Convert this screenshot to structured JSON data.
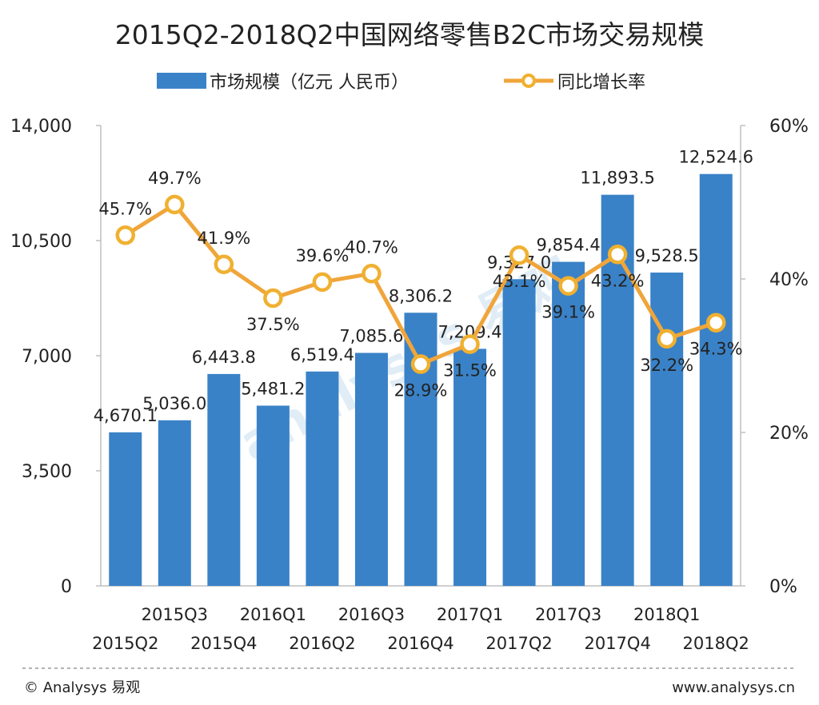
{
  "colors": {
    "bar": "#3a82c7",
    "line": "#f0a53a",
    "marker_fill": "#ffffff",
    "marker_stroke": "#f0b030",
    "axis": "#bfbfbf",
    "footer_rule": "#9a9a9a",
    "watermark": "#c9dff0"
  },
  "footer": {
    "left": "© Analysys 易观",
    "right": "www.analysys.cn"
  },
  "watermark": "analysys 易观",
  "chart_data": {
    "type": "bar",
    "title": "2015Q2-2018Q2中国网络零售B2C市场交易规模",
    "categories": [
      "2015Q2",
      "2015Q3",
      "2015Q4",
      "2016Q1",
      "2016Q2",
      "2016Q3",
      "2016Q4",
      "2017Q1",
      "2017Q2",
      "2017Q3",
      "2017Q4",
      "2018Q1",
      "2018Q2"
    ],
    "series": [
      {
        "name": "市场规模（亿元 人民币）",
        "type": "bar",
        "axis": "left",
        "values": [
          4670.1,
          5036.0,
          6443.8,
          5481.2,
          6519.4,
          7085.6,
          8306.2,
          7209.4,
          9327.0,
          9854.4,
          11893.5,
          9528.5,
          12524.6
        ],
        "labels": [
          "4,670.1",
          "5,036.0",
          "6,443.8",
          "5,481.2",
          "6,519.4",
          "7,085.6",
          "8,306.2",
          "7,209.4",
          "9,327.0",
          "9,854.4",
          "11,893.5",
          "9,528.5",
          "12,524.6"
        ]
      },
      {
        "name": "同比增长率",
        "type": "line",
        "axis": "right",
        "values": [
          45.7,
          49.7,
          41.9,
          37.5,
          39.6,
          40.7,
          28.9,
          31.5,
          43.1,
          39.1,
          43.2,
          32.2,
          34.3
        ],
        "labels": [
          "45.7%",
          "49.7%",
          "41.9%",
          "37.5%",
          "39.6%",
          "40.7%",
          "28.9%",
          "31.5%",
          "43.1%",
          "39.1%",
          "43.2%",
          "32.2%",
          "34.3%"
        ]
      }
    ],
    "y_left": {
      "min": 0,
      "max": 14000,
      "ticks": [
        0,
        3500,
        7000,
        10500,
        14000
      ],
      "tick_labels": [
        "0",
        "3,500",
        "7,000",
        "10,500",
        "14,000"
      ]
    },
    "y_right": {
      "min": 0,
      "max": 60,
      "ticks": [
        0,
        20,
        40,
        60
      ],
      "tick_labels": [
        "0%",
        "20%",
        "40%",
        "60%"
      ]
    },
    "grid": false,
    "legend_position": "top-center"
  }
}
